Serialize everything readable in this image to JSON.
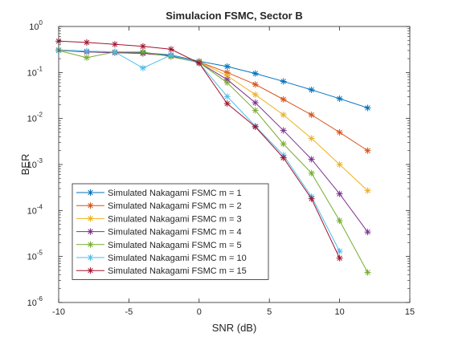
{
  "chart_data": {
    "type": "line",
    "title": "Simulacion FSMC, Sector B",
    "xlabel": "SNR (dB)",
    "ylabel": "BER",
    "xlim": [
      -10,
      15
    ],
    "ylim": [
      1e-06,
      1
    ],
    "yscale": "log",
    "grid": false,
    "legend_position": "bottom-left",
    "xticks": [
      -10,
      -5,
      0,
      5,
      10,
      15
    ],
    "xtick_labels": [
      "-10",
      "-5",
      "0",
      "5",
      "10",
      "15"
    ],
    "yticks": [
      {
        "value": 1e-06,
        "base": "10",
        "exp": "-6"
      },
      {
        "value": 1e-05,
        "base": "10",
        "exp": "-5"
      },
      {
        "value": 0.0001,
        "base": "10",
        "exp": "-4"
      },
      {
        "value": 0.001,
        "base": "10",
        "exp": "-3"
      },
      {
        "value": 0.01,
        "base": "10",
        "exp": "-2"
      },
      {
        "value": 0.1,
        "base": "10",
        "exp": "-1"
      },
      {
        "value": 1,
        "base": "10",
        "exp": "0"
      }
    ],
    "series": [
      {
        "name": "Simulated Nakagami FSMC m = 1",
        "color": "#0072BD",
        "x": [
          -10,
          -8,
          -6,
          -4,
          -2,
          0,
          2,
          4,
          6,
          8,
          10,
          12
        ],
        "y": [
          0.31,
          0.29,
          0.28,
          0.27,
          0.24,
          0.175,
          0.135,
          0.095,
          0.064,
          0.042,
          0.027,
          0.017
        ]
      },
      {
        "name": "Simulated Nakagami FSMC m = 2",
        "color": "#D95319",
        "x": [
          -10,
          -8,
          -6,
          -4,
          -2,
          0,
          2,
          4,
          6,
          8,
          10,
          12
        ],
        "y": [
          0.31,
          0.28,
          0.27,
          0.26,
          0.23,
          0.17,
          0.1,
          0.055,
          0.026,
          0.012,
          0.005,
          0.002
        ]
      },
      {
        "name": "Simulated Nakagami FSMC m = 3",
        "color": "#EDB120",
        "x": [
          -10,
          -8,
          -6,
          -4,
          -2,
          0,
          2,
          4,
          6,
          8,
          10,
          12
        ],
        "y": [
          0.31,
          0.28,
          0.27,
          0.26,
          0.23,
          0.17,
          0.085,
          0.033,
          0.012,
          0.0037,
          0.001,
          0.00027
        ]
      },
      {
        "name": "Simulated Nakagami FSMC m = 4",
        "color": "#7E2F8E",
        "x": [
          -10,
          -8,
          -6,
          -4,
          -2,
          0,
          2,
          4,
          6,
          8,
          10,
          12
        ],
        "y": [
          0.3,
          0.28,
          0.27,
          0.26,
          0.23,
          0.165,
          0.07,
          0.022,
          0.0055,
          0.0013,
          0.00023,
          3.4e-05
        ]
      },
      {
        "name": "Simulated Nakagami FSMC m = 5",
        "color": "#77AC30",
        "x": [
          -10,
          -8,
          -6,
          -4,
          -2,
          0,
          2,
          4,
          6,
          8,
          10,
          12
        ],
        "y": [
          0.3,
          0.21,
          0.28,
          0.28,
          0.22,
          0.165,
          0.06,
          0.015,
          0.0028,
          0.00065,
          6e-05,
          4.5e-06
        ]
      },
      {
        "name": "Simulated Nakagami FSMC m = 10",
        "color": "#4DBEEE",
        "x": [
          -10,
          -8,
          -6,
          -4,
          -2,
          0,
          2,
          4,
          6,
          8,
          10
        ],
        "y": [
          0.3,
          0.29,
          0.28,
          0.125,
          0.24,
          0.16,
          0.03,
          0.0068,
          0.0016,
          0.0002,
          1.3e-05
        ]
      },
      {
        "name": "Simulated Nakagami FSMC m = 15",
        "color": "#A2142F",
        "x": [
          -10,
          -8,
          -6,
          -4,
          -2,
          0,
          2,
          4,
          6,
          8,
          10
        ],
        "y": [
          0.48,
          0.45,
          0.41,
          0.37,
          0.32,
          0.16,
          0.021,
          0.0066,
          0.0014,
          0.00018,
          9.2e-06
        ]
      }
    ]
  }
}
